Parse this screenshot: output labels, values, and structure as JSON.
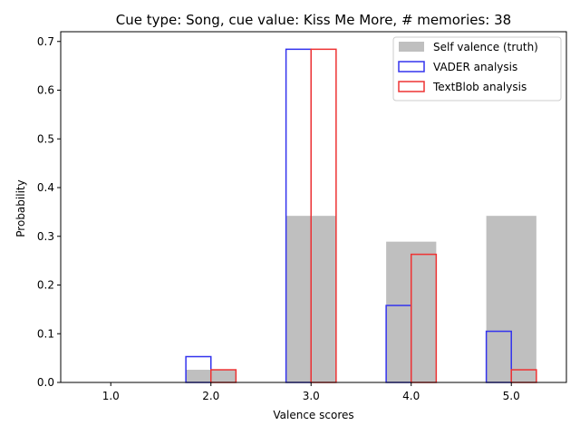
{
  "chart_data": {
    "type": "bar",
    "title": "Cue type: Song, cue value: Kiss Me More, # memories: 38",
    "xlabel": "Valence scores",
    "ylabel": "Probability",
    "categories": [
      "1.0",
      "2.0",
      "3.0",
      "4.0",
      "5.0"
    ],
    "x": [
      1.0,
      2.0,
      3.0,
      4.0,
      5.0
    ],
    "xlim": [
      0.5,
      5.55
    ],
    "ylim": [
      0,
      0.72
    ],
    "yticks": [
      "0.0",
      "0.1",
      "0.2",
      "0.3",
      "0.4",
      "0.5",
      "0.6",
      "0.7"
    ],
    "grid": false,
    "legend_position": "top-right",
    "series": [
      {
        "name": "Self valence (truth)",
        "style": "filled",
        "color": "#bfbfbf",
        "values": [
          0.0,
          0.026,
          0.342,
          0.289,
          0.342
        ]
      },
      {
        "name": "VADER analysis",
        "style": "outline",
        "color": "#3333ee",
        "values": [
          0.0,
          0.053,
          0.684,
          0.158,
          0.105
        ]
      },
      {
        "name": "TextBlob analysis",
        "style": "outline",
        "color": "#ee3333",
        "values": [
          0.0,
          0.026,
          0.684,
          0.263,
          0.026
        ]
      }
    ]
  }
}
